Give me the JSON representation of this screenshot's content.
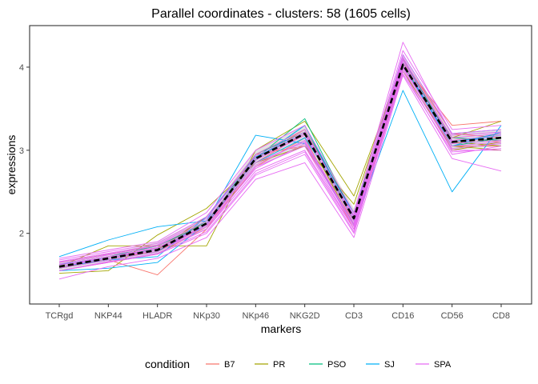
{
  "chart_data": {
    "type": "line",
    "title": "Parallel coordinates - clusters: 58 (1605 cells)",
    "xlabel": "markers",
    "ylabel": "expressions",
    "categories": [
      "TCRgd",
      "NKP44",
      "HLADR",
      "NKp30",
      "NKp46",
      "NKG2D",
      "CD3",
      "CD16",
      "CD56",
      "CD8"
    ],
    "ylim": [
      1.15,
      4.5
    ],
    "yticks": [
      2,
      3,
      4
    ],
    "grid": false,
    "legend": {
      "title": "condition",
      "position": "bottom",
      "entries": [
        {
          "label": "B7",
          "color": "#F8766D"
        },
        {
          "label": "PR",
          "color": "#A3A500"
        },
        {
          "label": "PSO",
          "color": "#00BF7D"
        },
        {
          "label": "SJ",
          "color": "#00B0F6"
        },
        {
          "label": "SPA",
          "color": "#E76BF3"
        }
      ]
    },
    "ribbon": {
      "lower": [
        1.55,
        1.65,
        1.75,
        2.05,
        2.8,
        3.05,
        2.1,
        3.95,
        3.0,
        3.05
      ],
      "upper": [
        1.65,
        1.75,
        1.9,
        2.2,
        3.0,
        3.3,
        2.3,
        4.15,
        3.2,
        3.25
      ]
    },
    "median": {
      "name": "median",
      "color": "#000000",
      "values": [
        1.6,
        1.7,
        1.8,
        2.12,
        2.9,
        3.2,
        2.18,
        4.03,
        3.1,
        3.15
      ]
    },
    "series": [
      {
        "condition": "B7",
        "color": "#F8766D",
        "values": [
          1.6,
          1.68,
          1.5,
          2.05,
          2.95,
          3.05,
          2.15,
          4.0,
          3.15,
          3.1
        ]
      },
      {
        "condition": "B7",
        "color": "#F8766D",
        "values": [
          1.58,
          1.7,
          1.78,
          2.1,
          2.85,
          3.2,
          2.1,
          4.05,
          3.3,
          3.35
        ]
      },
      {
        "condition": "B7",
        "color": "#F8766D",
        "values": [
          1.62,
          1.72,
          1.82,
          2.15,
          2.9,
          3.25,
          2.2,
          4.1,
          3.2,
          3.15
        ]
      },
      {
        "condition": "B7",
        "color": "#F8766D",
        "values": [
          1.55,
          1.65,
          1.75,
          2.08,
          2.8,
          3.15,
          2.05,
          3.95,
          3.05,
          3.05
        ]
      },
      {
        "condition": "PR",
        "color": "#A3A500",
        "values": [
          1.6,
          1.85,
          1.85,
          1.85,
          3.0,
          3.35,
          2.45,
          4.05,
          3.1,
          3.05
        ]
      },
      {
        "condition": "PR",
        "color": "#A3A500",
        "values": [
          1.52,
          1.55,
          1.98,
          2.3,
          2.85,
          3.05,
          2.35,
          4.1,
          3.15,
          3.35
        ]
      },
      {
        "condition": "PR",
        "color": "#A3A500",
        "values": [
          1.65,
          1.75,
          1.85,
          2.12,
          2.9,
          3.2,
          2.1,
          3.95,
          3.05,
          3.0
        ]
      },
      {
        "condition": "PR",
        "color": "#A3A500",
        "values": [
          1.58,
          1.7,
          1.8,
          2.2,
          2.95,
          3.25,
          2.25,
          4.05,
          3.0,
          3.1
        ]
      },
      {
        "condition": "PSO",
        "color": "#00BF7D",
        "values": [
          1.6,
          1.7,
          1.82,
          2.1,
          2.9,
          3.38,
          2.2,
          4.05,
          3.05,
          3.15
        ]
      },
      {
        "condition": "PSO",
        "color": "#00BF7D",
        "values": [
          1.58,
          1.68,
          1.78,
          2.15,
          2.88,
          3.3,
          2.15,
          4.1,
          3.1,
          3.2
        ]
      },
      {
        "condition": "PSO",
        "color": "#00BF7D",
        "values": [
          1.62,
          1.72,
          1.85,
          2.12,
          2.95,
          3.22,
          2.25,
          4.0,
          3.15,
          3.12
        ]
      },
      {
        "condition": "SJ",
        "color": "#00B0F6",
        "values": [
          1.72,
          1.92,
          2.08,
          2.15,
          3.18,
          3.08,
          2.1,
          3.72,
          2.5,
          3.3
        ]
      },
      {
        "condition": "SJ",
        "color": "#00B0F6",
        "values": [
          1.55,
          1.58,
          1.65,
          2.12,
          2.88,
          3.3,
          2.2,
          4.15,
          3.2,
          3.25
        ]
      },
      {
        "condition": "SJ",
        "color": "#00B0F6",
        "values": [
          1.6,
          1.68,
          1.72,
          2.2,
          2.92,
          3.2,
          2.15,
          4.05,
          3.05,
          3.22
        ]
      },
      {
        "condition": "SJ",
        "color": "#00B0F6",
        "values": [
          1.63,
          1.7,
          1.8,
          2.1,
          2.85,
          3.15,
          2.25,
          4.0,
          3.1,
          3.18
        ]
      },
      {
        "condition": "SPA",
        "color": "#E76BF3",
        "values": [
          1.45,
          1.6,
          1.7,
          1.95,
          2.65,
          2.85,
          1.95,
          3.9,
          2.9,
          2.75
        ]
      },
      {
        "condition": "SPA",
        "color": "#E76BF3",
        "values": [
          1.55,
          1.65,
          1.75,
          2.0,
          2.7,
          2.95,
          2.0,
          3.95,
          2.95,
          3.05
        ]
      },
      {
        "condition": "SPA",
        "color": "#E76BF3",
        "values": [
          1.6,
          1.7,
          1.8,
          2.05,
          2.8,
          3.05,
          2.05,
          4.0,
          3.05,
          3.1
        ]
      },
      {
        "condition": "SPA",
        "color": "#E76BF3",
        "values": [
          1.62,
          1.72,
          1.82,
          2.1,
          2.85,
          3.1,
          2.1,
          4.05,
          3.1,
          3.15
        ]
      },
      {
        "condition": "SPA",
        "color": "#E76BF3",
        "values": [
          1.65,
          1.75,
          1.85,
          2.15,
          2.9,
          3.2,
          2.15,
          4.1,
          3.15,
          3.2
        ]
      },
      {
        "condition": "SPA",
        "color": "#E76BF3",
        "values": [
          1.68,
          1.78,
          1.88,
          2.2,
          2.95,
          3.25,
          2.2,
          4.15,
          3.2,
          3.25
        ]
      },
      {
        "condition": "SPA",
        "color": "#E76BF3",
        "values": [
          1.7,
          1.8,
          1.9,
          2.25,
          3.0,
          3.3,
          2.25,
          4.2,
          3.25,
          3.3
        ]
      },
      {
        "condition": "SPA",
        "color": "#E76BF3",
        "values": [
          1.58,
          1.68,
          1.78,
          2.05,
          2.75,
          3.0,
          2.05,
          3.98,
          3.0,
          3.0
        ]
      },
      {
        "condition": "SPA",
        "color": "#E76BF3",
        "values": [
          1.6,
          1.72,
          1.8,
          2.1,
          2.82,
          3.12,
          2.12,
          4.08,
          3.08,
          3.12
        ]
      },
      {
        "condition": "SPA",
        "color": "#E76BF3",
        "values": [
          1.63,
          1.74,
          1.83,
          2.12,
          2.88,
          3.18,
          2.18,
          4.12,
          3.12,
          3.18
        ]
      },
      {
        "condition": "SPA",
        "color": "#E76BF3",
        "values": [
          1.55,
          1.66,
          1.76,
          2.02,
          2.72,
          2.98,
          2.02,
          3.92,
          2.98,
          3.02
        ]
      },
      {
        "condition": "SPA",
        "color": "#E76BF3",
        "values": [
          1.66,
          1.76,
          1.86,
          2.18,
          2.93,
          3.22,
          2.22,
          4.3,
          3.18,
          3.22
        ]
      },
      {
        "condition": "SPA",
        "color": "#E76BF3",
        "values": [
          1.6,
          1.7,
          1.8,
          2.08,
          2.78,
          3.08,
          2.08,
          4.02,
          3.02,
          3.08
        ]
      }
    ]
  }
}
